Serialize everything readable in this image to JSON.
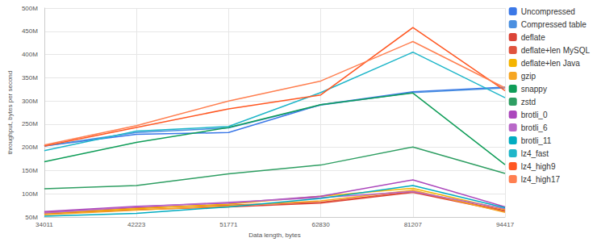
{
  "chart_data": {
    "type": "line",
    "x_label": "Data length, bytes",
    "y_label": "throughput, bytes per second",
    "categories": [
      "34011",
      "42223",
      "51771",
      "62830",
      "81207",
      "94417"
    ],
    "ylim": [
      50000000,
      500000000
    ],
    "yticks": [
      {
        "value": 50000000,
        "label": "50M"
      },
      {
        "value": 100000000,
        "label": "100M"
      },
      {
        "value": 150000000,
        "label": "150M"
      },
      {
        "value": 200000000,
        "label": "200M"
      },
      {
        "value": 250000000,
        "label": "250M"
      },
      {
        "value": 300000000,
        "label": "300M"
      },
      {
        "value": 350000000,
        "label": "350M"
      },
      {
        "value": 400000000,
        "label": "400M"
      },
      {
        "value": 450000000,
        "label": "450M"
      },
      {
        "value": 500000000,
        "label": "500M"
      }
    ],
    "grid": true,
    "legend": "right",
    "series": [
      {
        "name": "Uncompressed",
        "color": "#3b78e7",
        "values": [
          203000000,
          228000000,
          232000000,
          292000000,
          320000000,
          330000000
        ]
      },
      {
        "name": "Compressed table",
        "color": "#4a8fe0",
        "values": [
          203000000,
          232000000,
          242000000,
          291000000,
          318000000,
          328000000
        ]
      },
      {
        "name": "deflate",
        "color": "#db4437",
        "values": [
          57000000,
          66000000,
          72000000,
          80000000,
          103000000,
          62000000
        ]
      },
      {
        "name": "deflate+len MySQL",
        "color": "#e0533d",
        "values": [
          60000000,
          70000000,
          76000000,
          82000000,
          105000000,
          64000000
        ]
      },
      {
        "name": "deflate+len Java",
        "color": "#f4b400",
        "values": [
          58000000,
          68000000,
          78000000,
          95000000,
          112000000,
          66000000
        ]
      },
      {
        "name": "gzip",
        "color": "#f6a623",
        "values": [
          55000000,
          65000000,
          74000000,
          85000000,
          108000000,
          60000000
        ]
      },
      {
        "name": "snappy",
        "color": "#0f9d58",
        "values": [
          169000000,
          211000000,
          243000000,
          292000000,
          317000000,
          163000000
        ]
      },
      {
        "name": "zstd",
        "color": "#2e9e62",
        "values": [
          111000000,
          118000000,
          143000000,
          162000000,
          201000000,
          144000000
        ]
      },
      {
        "name": "brotli_0",
        "color": "#ab47bc",
        "values": [
          62000000,
          73000000,
          80000000,
          95000000,
          130000000,
          72000000
        ]
      },
      {
        "name": "brotli_6",
        "color": "#b868c8",
        "values": [
          59000000,
          72000000,
          82000000,
          92000000,
          105000000,
          68000000
        ]
      },
      {
        "name": "brotli_11",
        "color": "#00acc1",
        "values": [
          52000000,
          58000000,
          72000000,
          90000000,
          118000000,
          70000000
        ]
      },
      {
        "name": "lz4_fast",
        "color": "#1fb6c9",
        "values": [
          193000000,
          235000000,
          245000000,
          318000000,
          405000000,
          307000000
        ]
      },
      {
        "name": "lz4_high9",
        "color": "#ff5722",
        "values": [
          203000000,
          243000000,
          283000000,
          313000000,
          458000000,
          322000000
        ]
      },
      {
        "name": "lz4_high17",
        "color": "#ff7f50",
        "values": [
          205000000,
          247000000,
          300000000,
          343000000,
          428000000,
          328000000
        ]
      }
    ]
  }
}
